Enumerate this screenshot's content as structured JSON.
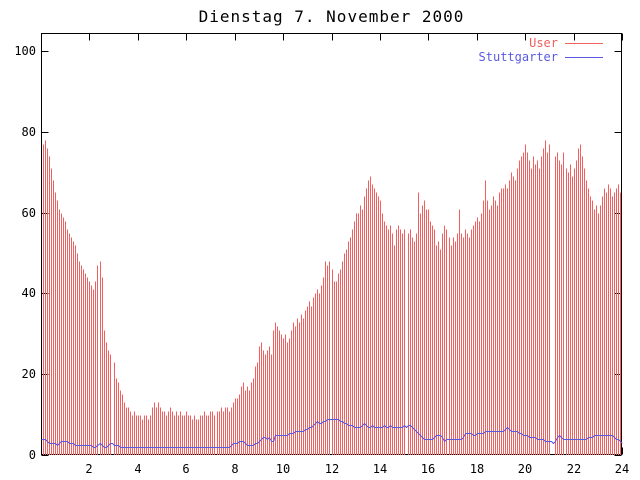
{
  "title": "Dienstag 7. November 2000",
  "chart_data": {
    "type": "bar",
    "title": "Dienstag 7. November 2000",
    "x_unit": "hour of day",
    "sample_interval_minutes": 5,
    "xlim": [
      0,
      24
    ],
    "ylim": [
      0,
      104
    ],
    "x_ticks": [
      2,
      4,
      6,
      8,
      10,
      12,
      14,
      16,
      18,
      20,
      22,
      24
    ],
    "y_ticks": [
      0,
      20,
      40,
      60,
      80,
      100
    ],
    "grid": false,
    "legend_position": "top-right-inside",
    "background": "#ffffff",
    "border_color": "#000000",
    "series": [
      {
        "name": "User",
        "style": "impulses",
        "color": "#f15f5f",
        "values": [
          0,
          77,
          78,
          76,
          74,
          71,
          68,
          65,
          63,
          61,
          60,
          59,
          58,
          56,
          55,
          54,
          53,
          52,
          50,
          48,
          47,
          46,
          45,
          44,
          43,
          42,
          41,
          43,
          47,
          48,
          44,
          31,
          28,
          26,
          25,
          0,
          23,
          19,
          18,
          16,
          15,
          13,
          12,
          12,
          11,
          10,
          11,
          10,
          10,
          10,
          9,
          10,
          10,
          9,
          10,
          12,
          13,
          12,
          13,
          12,
          11,
          11,
          10,
          11,
          12,
          11,
          10,
          11,
          10,
          11,
          10,
          10,
          11,
          10,
          10,
          9,
          10,
          9,
          9,
          10,
          10,
          11,
          10,
          10,
          11,
          11,
          10,
          11,
          11,
          12,
          11,
          12,
          12,
          11,
          12,
          13,
          14,
          14,
          15,
          17,
          18,
          16,
          17,
          16,
          18,
          19,
          22,
          23,
          27,
          28,
          26,
          25,
          26,
          27,
          25,
          31,
          33,
          32,
          31,
          30,
          29,
          30,
          28,
          29,
          31,
          33,
          32,
          34,
          33,
          35,
          34,
          36,
          37,
          38,
          37,
          39,
          40,
          41,
          40,
          42,
          44,
          48,
          47,
          48,
          46,
          43,
          43,
          45,
          46,
          48,
          50,
          51,
          53,
          54,
          56,
          58,
          60,
          60,
          62,
          61,
          64,
          66,
          68,
          69,
          67,
          66,
          65,
          64,
          63,
          60,
          58,
          57,
          56,
          57,
          55,
          52,
          56,
          57,
          56,
          55,
          56,
          0,
          55,
          56,
          54,
          53,
          55,
          65,
          60,
          62,
          63,
          61,
          61,
          58,
          57,
          56,
          52,
          53,
          51,
          55,
          57,
          56,
          54,
          52,
          54,
          53,
          55,
          61,
          55,
          54,
          56,
          55,
          54,
          56,
          57,
          58,
          59,
          58,
          60,
          63,
          68,
          63,
          61,
          62,
          64,
          63,
          62,
          65,
          66,
          66,
          67,
          66,
          68,
          70,
          69,
          68,
          71,
          73,
          74,
          75,
          77,
          75,
          73,
          71,
          74,
          72,
          73,
          71,
          74,
          76,
          78,
          75,
          77,
          0,
          0,
          74,
          75,
          73,
          72,
          75,
          71,
          70,
          72,
          69,
          71,
          73,
          76,
          77,
          74,
          71,
          68,
          66,
          64,
          63,
          61,
          62,
          60,
          62,
          64,
          66,
          65,
          67,
          66,
          64,
          65,
          66,
          67,
          65,
          64
        ]
      },
      {
        "name": "Stuttgarter",
        "style": "line",
        "color": "#5a5ae0",
        "values": [
          4,
          4,
          4,
          3.5,
          3,
          3,
          3,
          3,
          2.5,
          3,
          3.5,
          3.5,
          3.5,
          3.5,
          3,
          3,
          3,
          2.5,
          2.5,
          2.5,
          2.5,
          2.5,
          2.5,
          2.5,
          2.5,
          2.5,
          2,
          2,
          2.5,
          3,
          2.5,
          2,
          2,
          2.5,
          3,
          3,
          2.5,
          2.5,
          2.5,
          2,
          2,
          2,
          2,
          2,
          2,
          2,
          2,
          2,
          2,
          2,
          2,
          2,
          2,
          2,
          2,
          2,
          2,
          2,
          2,
          2,
          2,
          2,
          2,
          2,
          2,
          2,
          2,
          2,
          2,
          2,
          2,
          2,
          2,
          2,
          2,
          2,
          2,
          2,
          2,
          2,
          2,
          2,
          2,
          2,
          2,
          2,
          2,
          2,
          2,
          2,
          2,
          2,
          2,
          2,
          2.5,
          3,
          3,
          3,
          3.5,
          3.5,
          3.5,
          3,
          2.5,
          2.5,
          2.5,
          2.5,
          3,
          3,
          3.5,
          4,
          4.5,
          4.5,
          4,
          4.5,
          3.5,
          3.5,
          5,
          5,
          5,
          5,
          5,
          5,
          5,
          5.5,
          5.5,
          5.5,
          6,
          6,
          6,
          6,
          6,
          6.5,
          6.5,
          7,
          7,
          7.5,
          8,
          8.5,
          8,
          8,
          8.5,
          8.5,
          9,
          9,
          9,
          9,
          9,
          9,
          8.5,
          8.5,
          8,
          8,
          7.5,
          7.5,
          7.5,
          7,
          7,
          7,
          7,
          7.5,
          8,
          7.5,
          7,
          7,
          7.5,
          7,
          7,
          7,
          7,
          7,
          7.5,
          7,
          7,
          7.5,
          7,
          7,
          7,
          7,
          7,
          7,
          7.5,
          7,
          7.5,
          7.5,
          7,
          6.5,
          6,
          5.5,
          5,
          4.5,
          4,
          4,
          4,
          4,
          4,
          4.5,
          5,
          5,
          5,
          4.5,
          3.5,
          4,
          4,
          4,
          4,
          4,
          4,
          4,
          4,
          4.5,
          5.5,
          5.5,
          5.5,
          5.5,
          5,
          5,
          5.5,
          5.5,
          5.5,
          5.5,
          6,
          6,
          6,
          6,
          6,
          6,
          6,
          6,
          6,
          6,
          6.5,
          7,
          6.5,
          6,
          6,
          6,
          6,
          5.5,
          5.5,
          5,
          5,
          5,
          4.5,
          4.5,
          4.5,
          4.5,
          4,
          4,
          4,
          4,
          3.5,
          3.5,
          3.5,
          3.5,
          3,
          3.5,
          4.5,
          5,
          4.5,
          4,
          4,
          4,
          4,
          4,
          4,
          4,
          4,
          4,
          4,
          4,
          4,
          4.5,
          4.5,
          4.5,
          5,
          5,
          5,
          5,
          5,
          5,
          5,
          5,
          5,
          5,
          4.5,
          4,
          4,
          3.5,
          3
        ]
      }
    ]
  }
}
